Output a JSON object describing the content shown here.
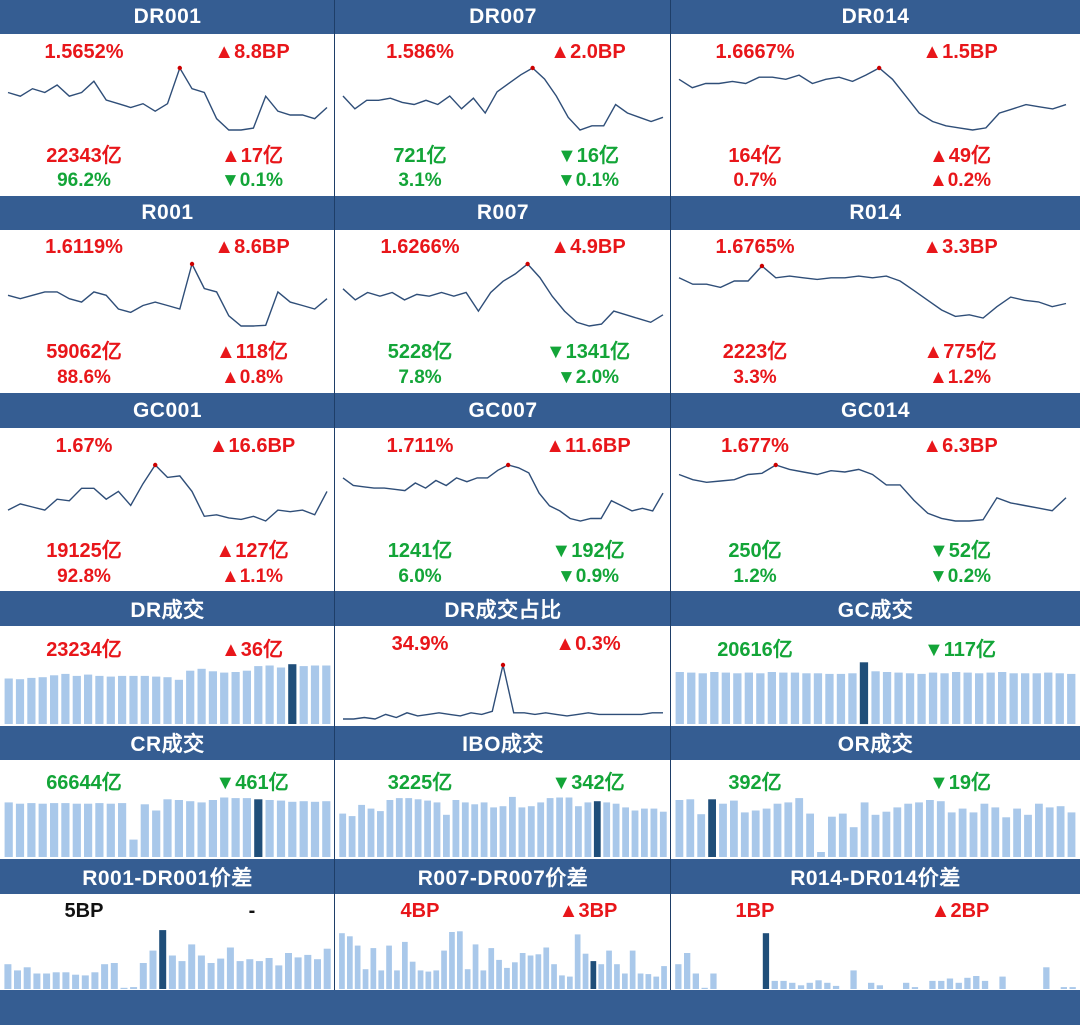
{
  "colors": {
    "header_bg": "#355d92",
    "up": "#e8161a",
    "down": "#13a538",
    "line": "#2f4e78",
    "bar": "#a9c8ea",
    "bar_highlight": "#1f4e79",
    "marker": "#cc0000"
  },
  "rate_panels": [
    {
      "title": "DR001",
      "rate": "1.5652%",
      "rate_dir": "up",
      "bp": "▲8.8BP",
      "bp_dir": "up",
      "volume": "22343亿",
      "volume_dir": "up",
      "vol_change": "▲17亿",
      "vol_change_dir": "up",
      "share": "96.2%",
      "share_dir": "down",
      "share_change": "▼0.1%",
      "share_change_dir": "down"
    },
    {
      "title": "DR007",
      "rate": "1.586%",
      "rate_dir": "up",
      "bp": "▲2.0BP",
      "bp_dir": "up",
      "volume": "721亿",
      "volume_dir": "down",
      "vol_change": "▼16亿",
      "vol_change_dir": "down",
      "share": "3.1%",
      "share_dir": "down",
      "share_change": "▼0.1%",
      "share_change_dir": "down"
    },
    {
      "title": "DR014",
      "rate": "1.6667%",
      "rate_dir": "up",
      "bp": "▲1.5BP",
      "bp_dir": "up",
      "volume": "164亿",
      "volume_dir": "up",
      "vol_change": "▲49亿",
      "vol_change_dir": "up",
      "share": "0.7%",
      "share_dir": "up",
      "share_change": "▲0.2%",
      "share_change_dir": "up"
    },
    {
      "title": "R001",
      "rate": "1.6119%",
      "rate_dir": "up",
      "bp": "▲8.6BP",
      "bp_dir": "up",
      "volume": "59062亿",
      "volume_dir": "up",
      "vol_change": "▲118亿",
      "vol_change_dir": "up",
      "share": "88.6%",
      "share_dir": "up",
      "share_change": "▲0.8%",
      "share_change_dir": "up"
    },
    {
      "title": "R007",
      "rate": "1.6266%",
      "rate_dir": "up",
      "bp": "▲4.9BP",
      "bp_dir": "up",
      "volume": "5228亿",
      "volume_dir": "down",
      "vol_change": "▼1341亿",
      "vol_change_dir": "down",
      "share": "7.8%",
      "share_dir": "down",
      "share_change": "▼2.0%",
      "share_change_dir": "down"
    },
    {
      "title": "R014",
      "rate": "1.6765%",
      "rate_dir": "up",
      "bp": "▲3.3BP",
      "bp_dir": "up",
      "volume": "2223亿",
      "volume_dir": "up",
      "vol_change": "▲775亿",
      "vol_change_dir": "up",
      "share": "3.3%",
      "share_dir": "up",
      "share_change": "▲1.2%",
      "share_change_dir": "up"
    },
    {
      "title": "GC001",
      "rate": "1.67%",
      "rate_dir": "up",
      "bp": "▲16.6BP",
      "bp_dir": "up",
      "volume": "19125亿",
      "volume_dir": "up",
      "vol_change": "▲127亿",
      "vol_change_dir": "up",
      "share": "92.8%",
      "share_dir": "up",
      "share_change": "▲1.1%",
      "share_change_dir": "up"
    },
    {
      "title": "GC007",
      "rate": "1.711%",
      "rate_dir": "up",
      "bp": "▲11.6BP",
      "bp_dir": "up",
      "volume": "1241亿",
      "volume_dir": "down",
      "vol_change": "▼192亿",
      "vol_change_dir": "down",
      "share": "6.0%",
      "share_dir": "down",
      "share_change": "▼0.9%",
      "share_change_dir": "down"
    },
    {
      "title": "GC014",
      "rate": "1.677%",
      "rate_dir": "up",
      "bp": "▲6.3BP",
      "bp_dir": "up",
      "volume": "250亿",
      "volume_dir": "down",
      "vol_change": "▼52亿",
      "vol_change_dir": "down",
      "share": "1.2%",
      "share_dir": "down",
      "share_change": "▼0.2%",
      "share_change_dir": "down"
    }
  ],
  "summary_panels": [
    {
      "title": "DR成交",
      "value": "23234亿",
      "value_dir": "up",
      "change": "▲36亿",
      "change_dir": "up"
    },
    {
      "title": "DR成交占比",
      "value": "34.9%",
      "value_dir": "up",
      "change": "▲0.3%",
      "change_dir": "up"
    },
    {
      "title": "GC成交",
      "value": "20616亿",
      "value_dir": "down",
      "change": "▼117亿",
      "change_dir": "down"
    },
    {
      "title": "CR成交",
      "value": "66644亿",
      "value_dir": "down",
      "change": "▼461亿",
      "change_dir": "down"
    },
    {
      "title": "IBO成交",
      "value": "3225亿",
      "value_dir": "down",
      "change": "▼342亿",
      "change_dir": "down"
    },
    {
      "title": "OR成交",
      "value": "392亿",
      "value_dir": "down",
      "change": "▼19亿",
      "change_dir": "down"
    },
    {
      "title": "R001-DR001价差",
      "value": "5BP",
      "value_dir": "neutral",
      "change": "-",
      "change_dir": "neutral"
    },
    {
      "title": "R007-DR007价差",
      "value": "4BP",
      "value_dir": "up",
      "change": "▲3BP",
      "change_dir": "up"
    },
    {
      "title": "R014-DR014价差",
      "value": "1BP",
      "value_dir": "up",
      "change": "▲2BP",
      "change_dir": "up"
    }
  ],
  "chart_data": [
    {
      "panel": "DR001",
      "type": "line",
      "values": [
        1.5,
        1.49,
        1.51,
        1.5,
        1.52,
        1.49,
        1.5,
        1.53,
        1.48,
        1.47,
        1.46,
        1.47,
        1.45,
        1.47,
        1.5652,
        1.51,
        1.5,
        1.43,
        1.4,
        1.4,
        1.405,
        1.49,
        1.45,
        1.44,
        1.44,
        1.43,
        1.46
      ],
      "highlight_index": 14
    },
    {
      "panel": "DR007",
      "type": "line",
      "values": [
        1.52,
        1.49,
        1.51,
        1.51,
        1.515,
        1.505,
        1.5,
        1.51,
        1.5,
        1.52,
        1.49,
        1.515,
        1.48,
        1.53,
        1.55,
        1.57,
        1.586,
        1.56,
        1.52,
        1.47,
        1.44,
        1.45,
        1.45,
        1.5,
        1.48,
        1.47,
        1.46,
        1.47
      ],
      "highlight_index": 16
    },
    {
      "panel": "DR014",
      "type": "line",
      "values": [
        1.64,
        1.62,
        1.63,
        1.63,
        1.635,
        1.63,
        1.645,
        1.645,
        1.64,
        1.65,
        1.63,
        1.64,
        1.645,
        1.635,
        1.65,
        1.6667,
        1.64,
        1.6,
        1.56,
        1.54,
        1.53,
        1.525,
        1.52,
        1.525,
        1.56,
        1.57,
        1.58,
        1.575,
        1.57,
        1.58
      ],
      "highlight_index": 15
    },
    {
      "panel": "R001",
      "type": "line",
      "values": [
        1.52,
        1.51,
        1.52,
        1.53,
        1.53,
        1.51,
        1.5,
        1.53,
        1.52,
        1.48,
        1.47,
        1.49,
        1.5,
        1.49,
        1.48,
        1.6119,
        1.54,
        1.53,
        1.46,
        1.43,
        1.43,
        1.432,
        1.53,
        1.5,
        1.49,
        1.48,
        1.51
      ],
      "highlight_index": 15
    },
    {
      "panel": "R007",
      "type": "line",
      "values": [
        1.56,
        1.53,
        1.55,
        1.54,
        1.55,
        1.53,
        1.545,
        1.54,
        1.55,
        1.54,
        1.55,
        1.5,
        1.55,
        1.58,
        1.6,
        1.6266,
        1.59,
        1.54,
        1.5,
        1.47,
        1.46,
        1.465,
        1.5,
        1.49,
        1.48,
        1.47,
        1.49
      ],
      "highlight_index": 15
    },
    {
      "panel": "R014",
      "type": "line",
      "values": [
        1.64,
        1.62,
        1.62,
        1.61,
        1.63,
        1.63,
        1.6765,
        1.64,
        1.645,
        1.64,
        1.635,
        1.64,
        1.64,
        1.645,
        1.64,
        1.645,
        1.63,
        1.6,
        1.57,
        1.54,
        1.52,
        1.525,
        1.515,
        1.55,
        1.58,
        1.57,
        1.565,
        1.55,
        1.56
      ],
      "highlight_index": 6
    },
    {
      "panel": "GC001",
      "type": "line",
      "values": [
        1.38,
        1.42,
        1.4,
        1.38,
        1.45,
        1.44,
        1.52,
        1.52,
        1.45,
        1.5,
        1.41,
        1.55,
        1.67,
        1.59,
        1.6,
        1.5,
        1.34,
        1.35,
        1.33,
        1.32,
        1.34,
        1.31,
        1.38,
        1.37,
        1.38,
        1.35,
        1.5
      ],
      "highlight_index": 12
    },
    {
      "panel": "GC007",
      "type": "line",
      "values": [
        1.66,
        1.63,
        1.625,
        1.62,
        1.62,
        1.615,
        1.61,
        1.64,
        1.62,
        1.65,
        1.63,
        1.66,
        1.645,
        1.66,
        1.66,
        1.69,
        1.711,
        1.7,
        1.68,
        1.6,
        1.55,
        1.53,
        1.5,
        1.49,
        1.5,
        1.5,
        1.57,
        1.55,
        1.53,
        1.54,
        1.53,
        1.6
      ],
      "highlight_index": 16
    },
    {
      "panel": "GC014",
      "type": "line",
      "values": [
        1.64,
        1.62,
        1.61,
        1.615,
        1.62,
        1.64,
        1.645,
        1.677,
        1.66,
        1.65,
        1.64,
        1.655,
        1.65,
        1.66,
        1.64,
        1.6,
        1.6,
        1.54,
        1.49,
        1.47,
        1.46,
        1.46,
        1.465,
        1.55,
        1.53,
        1.52,
        1.51,
        1.5,
        1.55
      ],
      "highlight_index": 7
    },
    {
      "panel": "DR成交",
      "type": "bar",
      "values": [
        70,
        69,
        71,
        72,
        75,
        77,
        74,
        76,
        74,
        73,
        74,
        74,
        74,
        73,
        72,
        68,
        82,
        85,
        81,
        79,
        80,
        82,
        89,
        90,
        87,
        92,
        89,
        90,
        90
      ],
      "highlight_index": 25,
      "ylim": [
        0,
        100
      ]
    },
    {
      "panel": "DR成交占比",
      "type": "line",
      "values": [
        0,
        0,
        1,
        0,
        3,
        1,
        4,
        2,
        3,
        4,
        3,
        2,
        4,
        3,
        5,
        34.9,
        4,
        4,
        3,
        4,
        3,
        2,
        3,
        4,
        3,
        3,
        3,
        3,
        3,
        4,
        4
      ],
      "highlight_index": 15
    },
    {
      "panel": "GC成交",
      "type": "bar",
      "values": [
        80,
        79,
        78,
        80,
        79,
        78,
        79,
        78,
        80,
        79,
        79,
        78,
        78,
        77,
        77,
        78,
        95,
        81,
        80,
        79,
        78,
        77,
        79,
        78,
        80,
        79,
        78,
        79,
        80,
        78,
        78,
        78,
        79,
        78,
        77
      ],
      "highlight_index": 16,
      "ylim": [
        0,
        100
      ]
    },
    {
      "panel": "CR成交",
      "type": "bar",
      "values": [
        88,
        86,
        87,
        86,
        87,
        87,
        86,
        86,
        87,
        86,
        87,
        28,
        85,
        75,
        93,
        92,
        90,
        88,
        92,
        96,
        95,
        95,
        93,
        92,
        91,
        89,
        90,
        89,
        90
      ],
      "highlight_index": 22,
      "ylim": [
        0,
        100
      ]
    },
    {
      "panel": "IBO成交",
      "type": "bar",
      "values": [
        70,
        66,
        84,
        78,
        74,
        92,
        95,
        95,
        93,
        91,
        88,
        68,
        92,
        88,
        85,
        88,
        80,
        82,
        97,
        80,
        82,
        88,
        95,
        96,
        96,
        82,
        88,
        90,
        88,
        86,
        80,
        75,
        78,
        78,
        73
      ],
      "highlight_index": 27,
      "ylim": [
        0,
        100
      ]
    },
    {
      "panel": "OR成交",
      "type": "bar",
      "values": [
        92,
        93,
        69,
        93,
        86,
        91,
        72,
        75,
        78,
        86,
        88,
        95,
        70,
        8,
        65,
        70,
        48,
        88,
        68,
        73,
        80,
        86,
        88,
        92,
        90,
        72,
        78,
        72,
        86,
        80,
        64,
        78,
        68,
        86,
        80,
        82,
        72
      ],
      "highlight_index": 3,
      "ylim": [
        0,
        100
      ]
    },
    {
      "panel": "R001-DR001价差",
      "type": "bar",
      "values": [
        40,
        30,
        35,
        25,
        25,
        27,
        27,
        23,
        22,
        27,
        40,
        42,
        2,
        3,
        42,
        62,
        95,
        54,
        45,
        72,
        54,
        42,
        49,
        67,
        45,
        48,
        45,
        50,
        38,
        58,
        51,
        55,
        48,
        65
      ],
      "highlight_index": 16,
      "ylim": [
        0,
        100
      ]
    },
    {
      "panel": "R007-DR007价差",
      "type": "bar",
      "values": [
        90,
        85,
        70,
        32,
        66,
        30,
        70,
        30,
        76,
        44,
        30,
        28,
        30,
        62,
        92,
        93,
        32,
        72,
        30,
        66,
        47,
        34,
        43,
        58,
        54,
        56,
        67,
        40,
        22,
        20,
        88,
        57,
        45,
        40,
        62,
        40,
        25,
        62,
        25,
        24,
        20,
        37
      ],
      "highlight_index": 32,
      "ylim": [
        0,
        100
      ]
    },
    {
      "panel": "R014-DR014价差",
      "type": "bar",
      "values": [
        40,
        58,
        25,
        2,
        25,
        0,
        0,
        0,
        0,
        0,
        90,
        13,
        13,
        10,
        6,
        10,
        14,
        10,
        5,
        0,
        30,
        0,
        10,
        6,
        0,
        0,
        10,
        3,
        0,
        13,
        13,
        17,
        10,
        18,
        21,
        13,
        0,
        20,
        0,
        0,
        0,
        0,
        35,
        0,
        3,
        3
      ],
      "highlight_index": 10,
      "ylim": [
        0,
        100
      ]
    }
  ]
}
